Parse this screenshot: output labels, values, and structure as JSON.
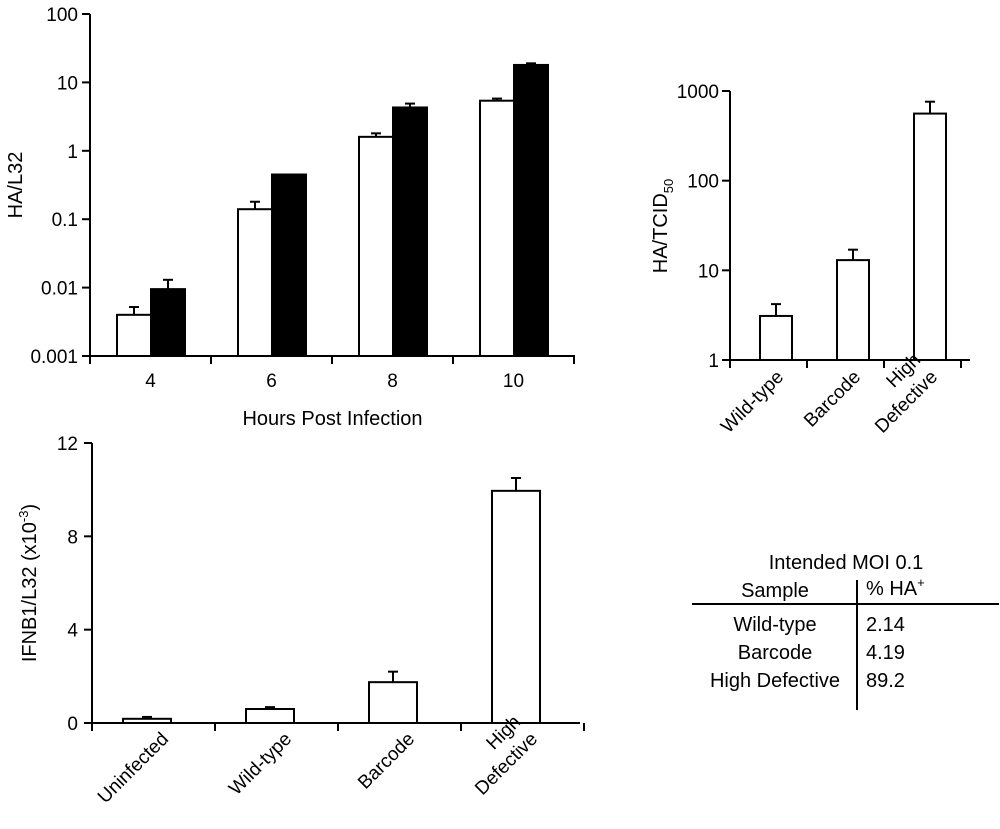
{
  "chart_data": [
    {
      "id": "hpi",
      "type": "bar",
      "scale": "log",
      "xlabel": "Hours Post Infection",
      "ylabel": "HA/L32",
      "ylim": [
        0.001,
        100
      ],
      "yticks": [
        "0.001",
        "0.01",
        "0.1",
        "1",
        "10",
        "100"
      ],
      "categories": [
        "4",
        "6",
        "8",
        "10"
      ],
      "series": [
        {
          "color": "#ffffff",
          "values": [
            0.004,
            0.14,
            1.6,
            5.4
          ],
          "errors": [
            0.0012,
            0.04,
            0.2,
            0.4
          ]
        },
        {
          "color": "#000000",
          "values": [
            0.0095,
            0.45,
            4.3,
            18
          ],
          "errors": [
            0.0035,
            0.0,
            0.6,
            1.0
          ]
        }
      ]
    },
    {
      "id": "tcid",
      "type": "bar",
      "scale": "log",
      "xlabel": "",
      "ylabel": "HA/TCID",
      "ylabel_sub": "50",
      "ylim": [
        1,
        1000
      ],
      "yticks": [
        "1",
        "10",
        "100",
        "1000"
      ],
      "categories": [
        {
          "lines": [
            "Wild-type"
          ]
        },
        {
          "lines": [
            "Barcode"
          ]
        },
        {
          "lines": [
            "High",
            "Defective"
          ]
        }
      ],
      "series": [
        {
          "color": "#ffffff",
          "values": [
            3.1,
            13,
            560
          ],
          "errors": [
            1.1,
            4,
            200
          ]
        }
      ]
    },
    {
      "id": "ifnb",
      "type": "bar",
      "scale": "linear",
      "xlabel": "",
      "ylabel": "IFNB1/L32 (x10",
      "ylabel_sup": "-3",
      "ylabel_end": ")",
      "ylim": [
        0,
        12
      ],
      "yticks": [
        "0",
        "4",
        "8",
        "12"
      ],
      "categories": [
        {
          "lines": [
            "Uninfected"
          ]
        },
        {
          "lines": [
            "Wild-type"
          ]
        },
        {
          "lines": [
            "Barcode"
          ]
        },
        {
          "lines": [
            "High",
            "Defective"
          ]
        }
      ],
      "series": [
        {
          "color": "#ffffff",
          "values": [
            0.18,
            0.6,
            1.75,
            9.95
          ],
          "errors": [
            0.08,
            0.08,
            0.45,
            0.55
          ]
        }
      ]
    }
  ],
  "moi_table": {
    "title": "Intended MOI 0.1",
    "col_sample": "Sample",
    "col_ha": "% HA",
    "col_ha_sup": "+",
    "rows": [
      {
        "sample": "Wild-type",
        "value": "2.14"
      },
      {
        "sample": "Barcode",
        "value": "4.19"
      },
      {
        "sample": "High Defective",
        "value": "89.2"
      }
    ]
  }
}
